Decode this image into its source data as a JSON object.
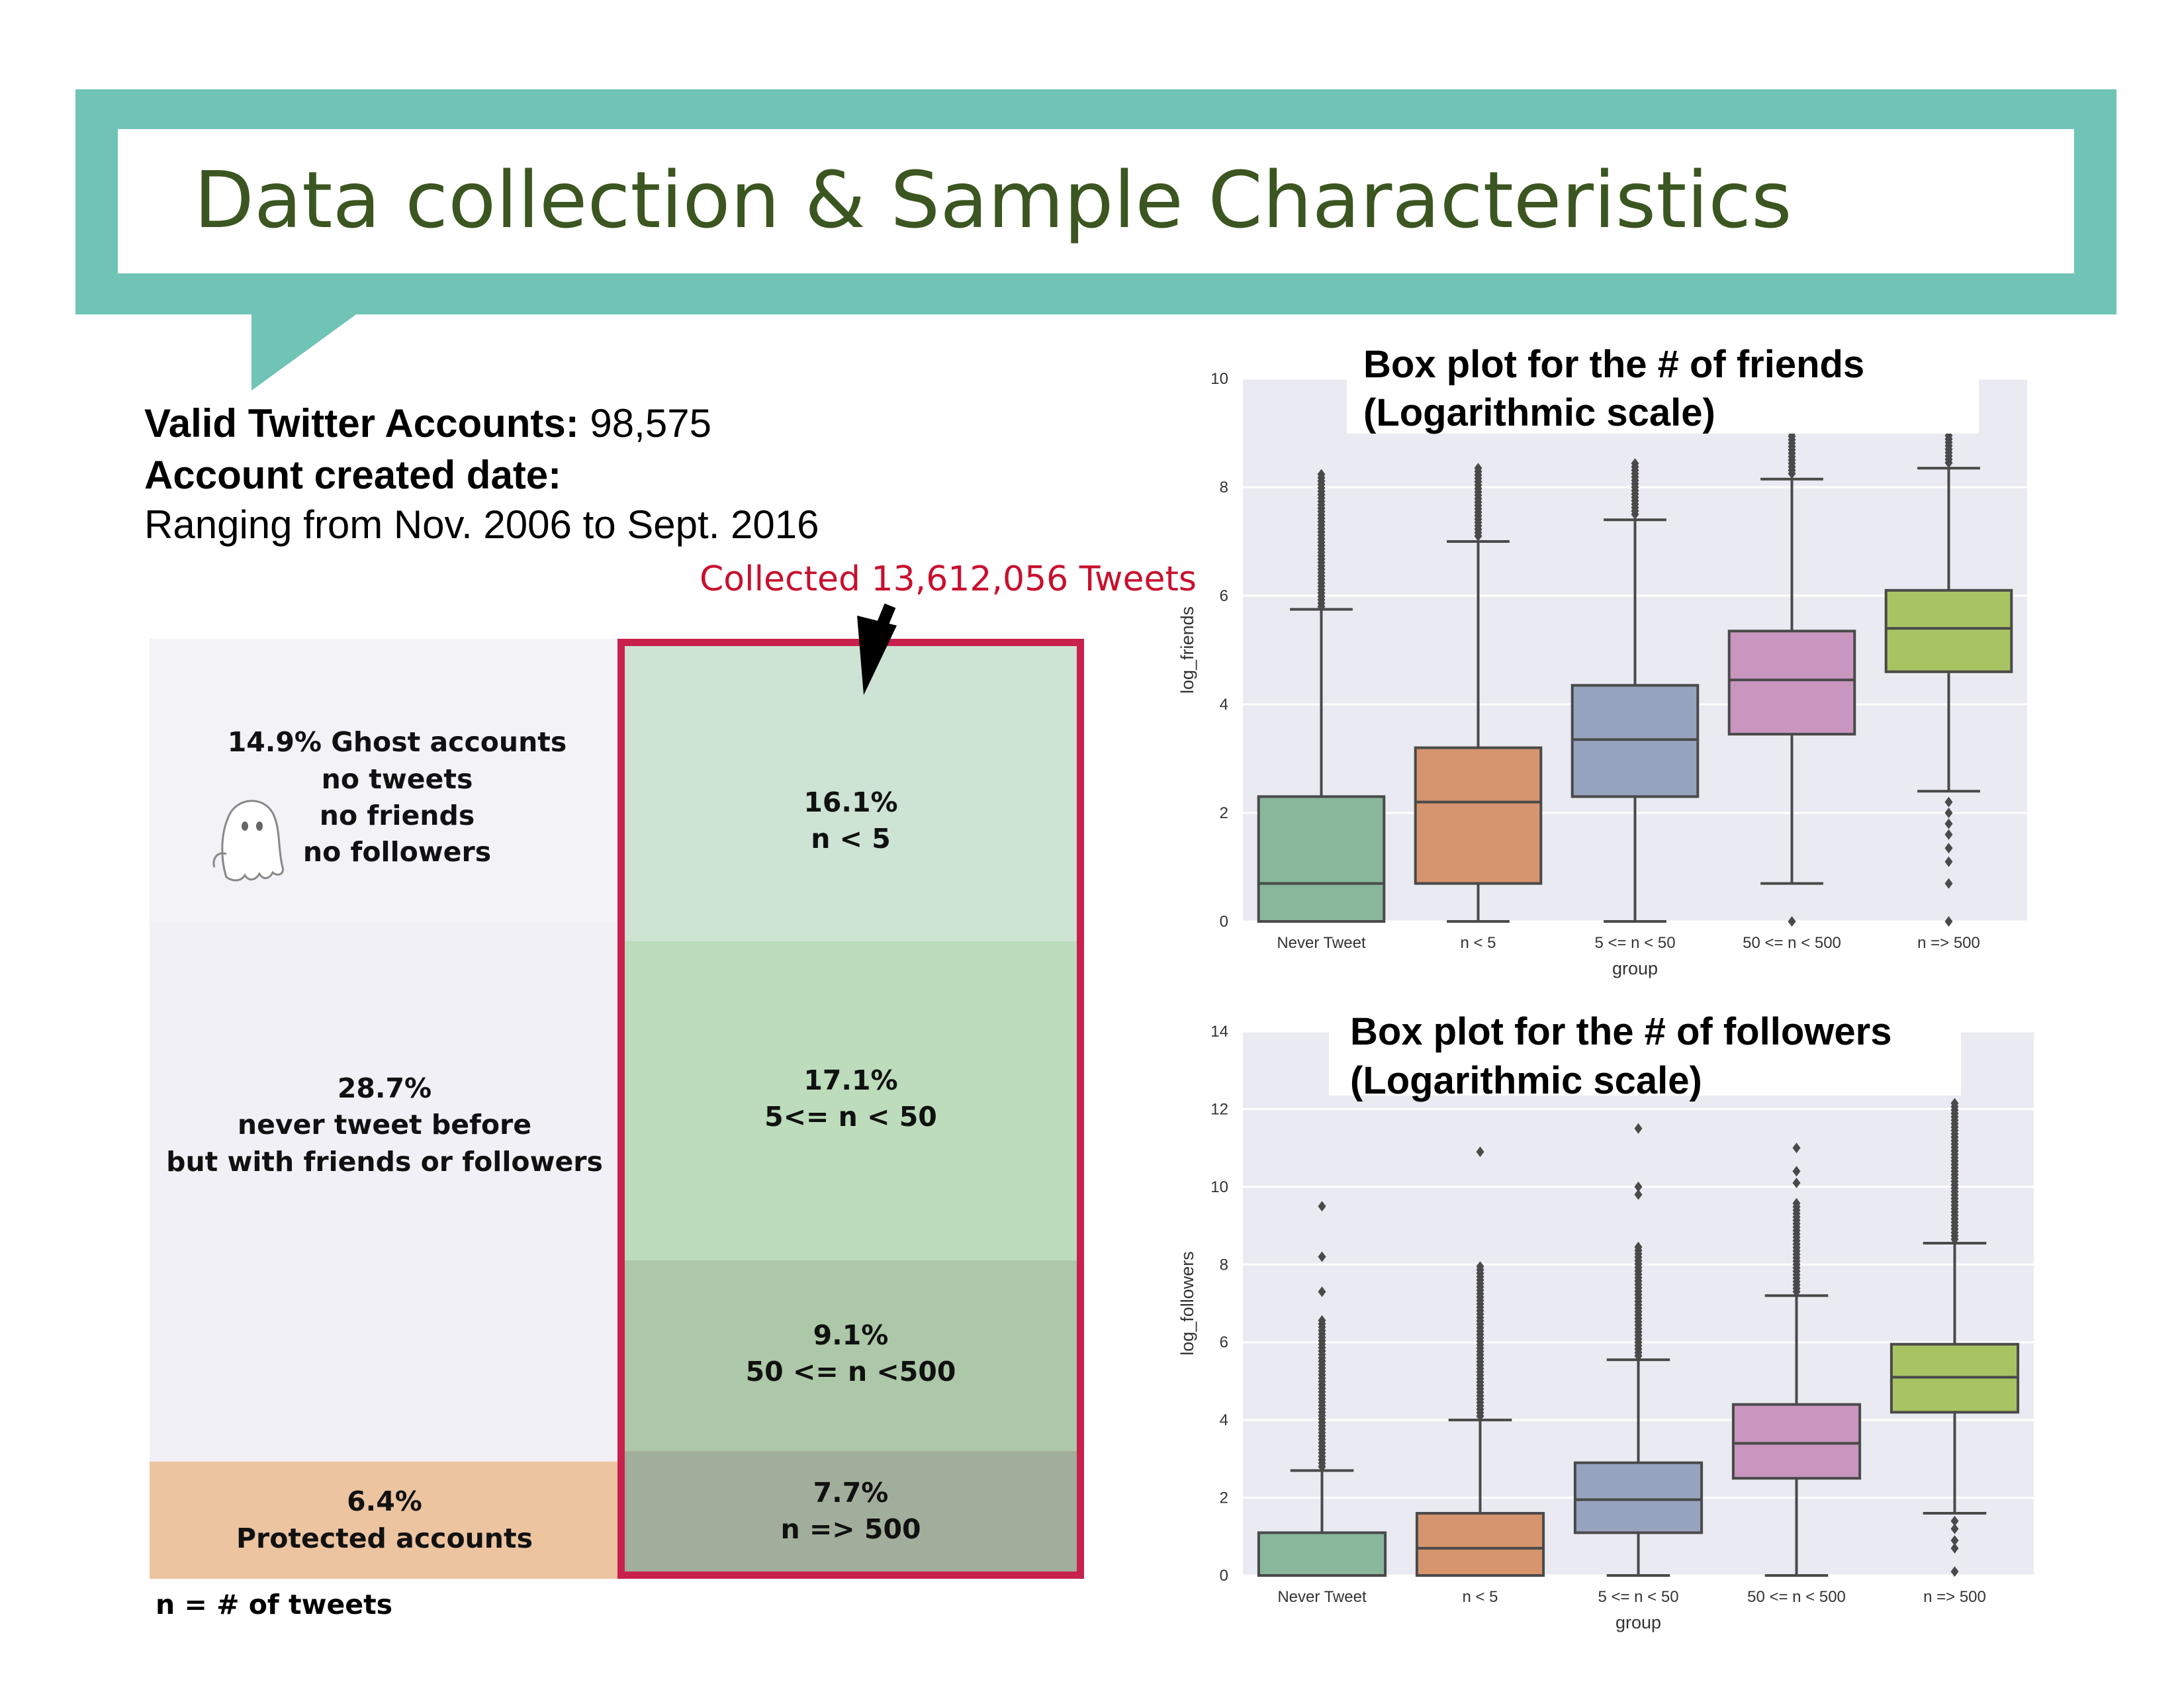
{
  "slide_title": "Data collection & Sample Characteristics",
  "info": {
    "accounts_label": "Valid Twitter Accounts:",
    "accounts_value": " 98,575",
    "created_label": "Account created date:",
    "created_range": "Ranging from Nov. 2006 to Sept. 2016"
  },
  "collected_label": "Collected 13,612,056 Tweets",
  "breakdown": {
    "ghost": [
      "14.9% Ghost accounts",
      "no tweets",
      "no friends",
      "no followers"
    ],
    "never_tweet": [
      "28.7%",
      "never tweet before",
      "but with friends or followers"
    ],
    "protected": [
      "6.4%",
      "Protected accounts"
    ],
    "tweet_groups": [
      {
        "pct": "16.1%",
        "label": "n < 5"
      },
      {
        "pct": "17.1%",
        "label": "5<= n < 50"
      },
      {
        "pct": "9.1%",
        "label": "50 <= n <500"
      },
      {
        "pct": "7.7%",
        "label": "n => 500"
      }
    ],
    "legend": "n = # of tweets"
  },
  "colors": {
    "banner": "#6fc4b5",
    "title_text": "#3b5620",
    "red": "#c8214d",
    "protected": "#ecc4a0",
    "group_fill": [
      "#cde3d4",
      "#bcdcbb",
      "#adc8a8",
      "#a2ae9c"
    ],
    "box_fill": [
      "#88b79b",
      "#d6956e",
      "#97a4bf",
      "#c996bf",
      "#a8c462"
    ]
  },
  "chart_data": [
    {
      "type": "box",
      "title": [
        "Box plot for the # of friends",
        "(Logarithmic scale)"
      ],
      "xlabel": "group",
      "ylabel": "log_friends",
      "ylim": [
        0,
        10
      ],
      "yticks": [
        "0",
        "2",
        "4",
        "6",
        "8",
        "10"
      ],
      "categories": [
        "Never Tweet",
        "n < 5",
        "5 <= n < 50",
        "50 <= n < 500",
        "n => 500"
      ],
      "boxes": [
        {
          "whislo": 0,
          "q1": 0,
          "med": 0.7,
          "q3": 2.3,
          "whishi": 5.75,
          "flier_range": [
            5.8,
            8.25
          ],
          "flier_points": []
        },
        {
          "whislo": 0,
          "q1": 0.7,
          "med": 2.2,
          "q3": 3.2,
          "whishi": 7.0,
          "flier_range": [
            7.1,
            8.35
          ],
          "flier_points": []
        },
        {
          "whislo": 0,
          "q1": 2.3,
          "med": 3.35,
          "q3": 4.35,
          "whishi": 7.4,
          "flier_range": [
            7.5,
            8.45
          ],
          "flier_points": []
        },
        {
          "whislo": 0.7,
          "q1": 3.45,
          "med": 4.45,
          "q3": 5.35,
          "whishi": 8.15,
          "flier_range": [
            8.25,
            9.3
          ],
          "flier_points": [
            0
          ]
        },
        {
          "whislo": 2.4,
          "q1": 4.6,
          "med": 5.4,
          "q3": 6.1,
          "whishi": 8.35,
          "flier_range": [
            8.45,
            9.7
          ],
          "flier_points": [
            2.2,
            2.0,
            1.8,
            1.6,
            1.35,
            1.1,
            0.7,
            0
          ]
        }
      ]
    },
    {
      "type": "box",
      "title": [
        "Box plot for the # of followers",
        "(Logarithmic scale)"
      ],
      "xlabel": "group",
      "ylabel": "log_followers",
      "ylim": [
        0,
        14
      ],
      "yticks": [
        "0",
        "2",
        "4",
        "6",
        "8",
        "10",
        "12",
        "14"
      ],
      "categories": [
        "Never Tweet",
        "n < 5",
        "5 <= n < 50",
        "50 <= n < 500",
        "n => 500"
      ],
      "boxes": [
        {
          "whislo": 0,
          "q1": 0,
          "med": 0,
          "q3": 1.1,
          "whishi": 2.7,
          "flier_range": [
            2.8,
            6.6
          ],
          "flier_points": [
            7.3,
            8.2,
            9.5
          ]
        },
        {
          "whislo": 0,
          "q1": 0,
          "med": 0.7,
          "q3": 1.6,
          "whishi": 4.0,
          "flier_range": [
            4.1,
            8.0
          ],
          "flier_points": [
            10.9
          ]
        },
        {
          "whislo": 0,
          "q1": 1.1,
          "med": 1.95,
          "q3": 2.9,
          "whishi": 5.55,
          "flier_range": [
            5.65,
            8.5
          ],
          "flier_points": [
            9.8,
            10.0,
            11.5
          ]
        },
        {
          "whislo": 0,
          "q1": 2.5,
          "med": 3.4,
          "q3": 4.4,
          "whishi": 7.2,
          "flier_range": [
            7.3,
            9.6
          ],
          "flier_points": [
            10.1,
            10.4,
            11.0
          ]
        },
        {
          "whislo": 1.6,
          "q1": 4.2,
          "med": 5.1,
          "q3": 5.95,
          "whishi": 8.55,
          "flier_range": [
            8.65,
            12.2
          ],
          "flier_points": [
            1.4,
            1.2,
            0.9,
            0.7,
            0.1
          ]
        }
      ]
    }
  ]
}
